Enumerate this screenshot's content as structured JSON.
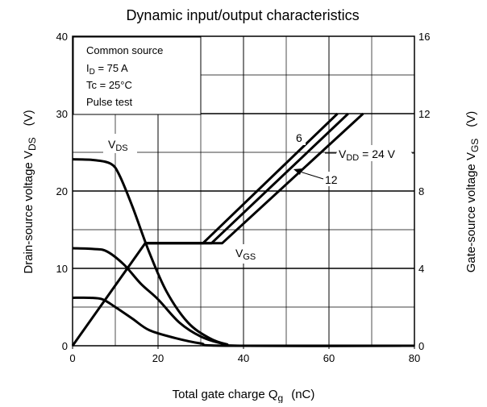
{
  "chart_data": {
    "type": "line",
    "title": "Dynamic input/output characteristics",
    "xlabel": "Total gate charge   Q",
    "xlabel_sub": "g",
    "xlabel_unit": "(nC)",
    "ylabel_left": "Drain-source voltage   V",
    "ylabel_left_sub": "DS",
    "ylabel_left_unit": "(V)",
    "ylabel_right": "Gate-source voltage   V",
    "ylabel_right_sub": "GS",
    "ylabel_right_unit": "(V)",
    "xlim": [
      0,
      80
    ],
    "ylim_left": [
      0,
      40
    ],
    "ylim_right": [
      0,
      16
    ],
    "x_ticks": [
      "0",
      "20",
      "40",
      "60",
      "80"
    ],
    "y_left_ticks": [
      "0",
      "10",
      "20",
      "30",
      "40"
    ],
    "y_right_ticks": [
      "0",
      "4",
      "8",
      "12",
      "16"
    ],
    "grid": true,
    "conditions": {
      "line1": "Common source",
      "line2_main": "I",
      "line2_sub": "D",
      "line2_rest": " = 75 A",
      "line3": "Tc = 25°C",
      "line4": "Pulse test"
    },
    "annotations": {
      "vds_main": "V",
      "vds_sub": "DS",
      "vgs_main": "V",
      "vgs_sub": "GS",
      "vdd_main": "V",
      "vdd_sub": "DD",
      "vdd_rest": " = 24 V",
      "label_6": "6",
      "label_12": "12"
    },
    "series": [
      {
        "axis": "left",
        "points": [
          [
            0,
            24.1
          ],
          [
            5,
            24
          ],
          [
            9,
            23.5
          ],
          [
            11,
            22
          ],
          [
            14,
            18
          ],
          [
            18,
            12
          ],
          [
            22,
            7
          ],
          [
            27,
            3
          ],
          [
            32,
            1
          ],
          [
            36,
            0.2
          ],
          [
            40,
            0
          ],
          [
            80,
            0
          ]
        ]
      },
      {
        "axis": "left",
        "points": [
          [
            0,
            12.6
          ],
          [
            5,
            12.5
          ],
          [
            8,
            12.2
          ],
          [
            12,
            10.5
          ],
          [
            16,
            8
          ],
          [
            20,
            6
          ],
          [
            25,
            3
          ],
          [
            30,
            1.2
          ],
          [
            35,
            0.3
          ],
          [
            40,
            0
          ],
          [
            80,
            0
          ]
        ]
      },
      {
        "axis": "left",
        "points": [
          [
            0,
            6.2
          ],
          [
            4,
            6.2
          ],
          [
            7,
            6
          ],
          [
            10,
            5
          ],
          [
            14,
            3.5
          ],
          [
            18,
            2
          ],
          [
            24,
            1
          ],
          [
            30,
            0.3
          ],
          [
            36,
            0
          ],
          [
            80,
            0
          ]
        ]
      },
      {
        "axis": "right",
        "points": [
          [
            0,
            0
          ],
          [
            17,
            5.3
          ],
          [
            30.5,
            5.3
          ],
          [
            62,
            12
          ]
        ]
      },
      {
        "axis": "right",
        "points": [
          [
            17,
            5.3
          ],
          [
            32.5,
            5.3
          ],
          [
            64.5,
            12
          ]
        ]
      },
      {
        "axis": "right",
        "points": [
          [
            17,
            5.3
          ],
          [
            35,
            5.3
          ],
          [
            68,
            12
          ]
        ]
      }
    ]
  }
}
